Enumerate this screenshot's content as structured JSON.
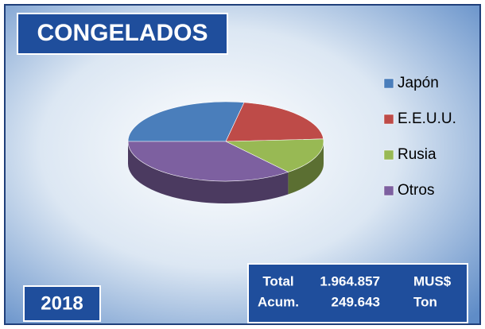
{
  "chart_data": {
    "type": "pie",
    "title": "CONGELADOS",
    "year": "2018",
    "categories": [
      "Japón",
      "E.E.U.U.",
      "Rusia",
      "Otros"
    ],
    "values": [
      28,
      21,
      15,
      36
    ],
    "colors": [
      "#4a7ebb",
      "#be4b48",
      "#98b954",
      "#7d60a0"
    ],
    "legend": "right",
    "summary": [
      [
        "Total",
        "1.964.857",
        "MUS$"
      ],
      [
        "Acum.",
        "249.643",
        "Ton"
      ]
    ]
  }
}
